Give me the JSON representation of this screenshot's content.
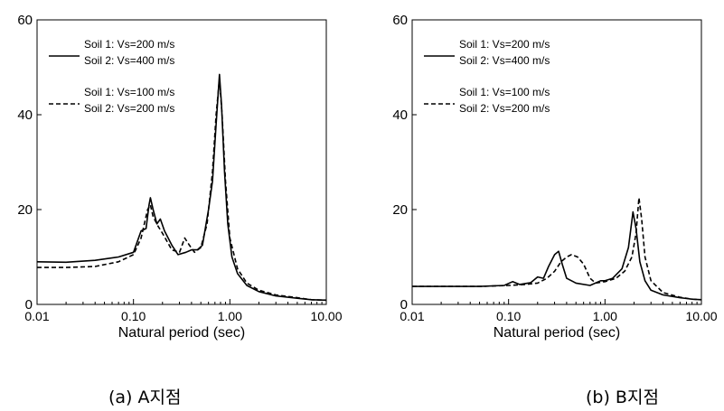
{
  "chart_data": [
    {
      "type": "line",
      "xscale": "log",
      "xlim": [
        0.01,
        10
      ],
      "ylim": [
        0,
        60
      ],
      "xlabel": "Natural period (sec)",
      "ylabel": "",
      "xticks": [
        "0.01",
        "0.10",
        "1.00",
        "10.00"
      ],
      "yticks": [
        "0",
        "20",
        "40",
        "60"
      ],
      "grid": false,
      "legend_position": "top-left",
      "caption": "(a) A지점",
      "series": [
        {
          "name": "Soil 1: Vs=200 m/s",
          "name_line2": "Soil 2: Vs=400 m/s",
          "style": "solid",
          "points": [
            [
              0.01,
              9.0
            ],
            [
              0.02,
              8.9
            ],
            [
              0.04,
              9.3
            ],
            [
              0.07,
              10.0
            ],
            [
              0.1,
              11.0
            ],
            [
              0.12,
              15.5
            ],
            [
              0.135,
              16.0
            ],
            [
              0.145,
              21.0
            ],
            [
              0.15,
              22.5
            ],
            [
              0.16,
              20.0
            ],
            [
              0.175,
              17.0
            ],
            [
              0.19,
              18.0
            ],
            [
              0.21,
              15.5
            ],
            [
              0.25,
              12.5
            ],
            [
              0.29,
              10.5
            ],
            [
              0.35,
              11.0
            ],
            [
              0.4,
              11.5
            ],
            [
              0.46,
              11.5
            ],
            [
              0.52,
              12.5
            ],
            [
              0.6,
              20.0
            ],
            [
              0.66,
              26.0
            ],
            [
              0.72,
              38.0
            ],
            [
              0.78,
              48.5
            ],
            [
              0.82,
              42.0
            ],
            [
              0.88,
              28.0
            ],
            [
              0.95,
              17.0
            ],
            [
              1.05,
              10.0
            ],
            [
              1.2,
              6.5
            ],
            [
              1.5,
              4.0
            ],
            [
              2.0,
              2.7
            ],
            [
              3.0,
              1.8
            ],
            [
              5.0,
              1.3
            ],
            [
              7.0,
              1.0
            ],
            [
              10.0,
              0.9
            ]
          ]
        },
        {
          "name": "Soil 1: Vs=100 m/s",
          "name_line2": "Soil 2: Vs=200 m/s",
          "style": "dashed",
          "points": [
            [
              0.01,
              7.8
            ],
            [
              0.02,
              7.8
            ],
            [
              0.04,
              8.0
            ],
            [
              0.07,
              9.0
            ],
            [
              0.1,
              10.5
            ],
            [
              0.12,
              14.0
            ],
            [
              0.14,
              20.0
            ],
            [
              0.15,
              21.0
            ],
            [
              0.16,
              18.5
            ],
            [
              0.18,
              16.5
            ],
            [
              0.2,
              15.0
            ],
            [
              0.25,
              11.5
            ],
            [
              0.3,
              11.0
            ],
            [
              0.34,
              14.0
            ],
            [
              0.38,
              12.5
            ],
            [
              0.43,
              11.0
            ],
            [
              0.5,
              12.0
            ],
            [
              0.58,
              17.0
            ],
            [
              0.66,
              28.0
            ],
            [
              0.72,
              40.0
            ],
            [
              0.78,
              47.5
            ],
            [
              0.83,
              40.0
            ],
            [
              0.9,
              26.0
            ],
            [
              1.0,
              14.0
            ],
            [
              1.2,
              7.5
            ],
            [
              1.5,
              4.5
            ],
            [
              2.0,
              3.0
            ],
            [
              3.0,
              2.0
            ],
            [
              5.0,
              1.4
            ],
            [
              7.0,
              1.0
            ],
            [
              10.0,
              0.9
            ]
          ]
        }
      ]
    },
    {
      "type": "line",
      "xscale": "log",
      "xlim": [
        0.01,
        10
      ],
      "ylim": [
        0,
        60
      ],
      "xlabel": "Natural period (sec)",
      "ylabel": "",
      "xticks": [
        "0.01",
        "0.10",
        "1.00",
        "10.00"
      ],
      "yticks": [
        "0",
        "20",
        "40",
        "60"
      ],
      "grid": false,
      "legend_position": "top-left",
      "caption": "(b) B지점",
      "series": [
        {
          "name": "Soil 1: Vs=200 m/s",
          "name_line2": "Soil 2: Vs=400 m/s",
          "style": "solid",
          "points": [
            [
              0.01,
              3.8
            ],
            [
              0.05,
              3.8
            ],
            [
              0.09,
              4.0
            ],
            [
              0.11,
              4.8
            ],
            [
              0.13,
              4.2
            ],
            [
              0.17,
              4.6
            ],
            [
              0.2,
              5.8
            ],
            [
              0.23,
              5.5
            ],
            [
              0.26,
              8.0
            ],
            [
              0.3,
              10.5
            ],
            [
              0.33,
              11.2
            ],
            [
              0.36,
              8.5
            ],
            [
              0.4,
              5.5
            ],
            [
              0.5,
              4.5
            ],
            [
              0.7,
              4.0
            ],
            [
              0.9,
              5.0
            ],
            [
              1.0,
              5.0
            ],
            [
              1.2,
              5.5
            ],
            [
              1.5,
              7.5
            ],
            [
              1.75,
              12.0
            ],
            [
              1.95,
              19.5
            ],
            [
              2.1,
              16.0
            ],
            [
              2.3,
              9.0
            ],
            [
              2.6,
              5.0
            ],
            [
              3.0,
              3.0
            ],
            [
              4.0,
              2.0
            ],
            [
              6.0,
              1.4
            ],
            [
              8.0,
              1.1
            ],
            [
              10.0,
              1.0
            ]
          ]
        },
        {
          "name": "Soil 1: Vs=100 m/s",
          "name_line2": "Soil 2: Vs=200 m/s",
          "style": "dashed",
          "points": [
            [
              0.01,
              3.8
            ],
            [
              0.05,
              3.8
            ],
            [
              0.1,
              4.0
            ],
            [
              0.15,
              4.2
            ],
            [
              0.2,
              4.5
            ],
            [
              0.25,
              5.5
            ],
            [
              0.3,
              7.0
            ],
            [
              0.35,
              9.0
            ],
            [
              0.4,
              10.0
            ],
            [
              0.45,
              10.5
            ],
            [
              0.52,
              10.0
            ],
            [
              0.6,
              8.5
            ],
            [
              0.7,
              5.5
            ],
            [
              0.8,
              4.5
            ],
            [
              1.0,
              4.8
            ],
            [
              1.3,
              5.5
            ],
            [
              1.6,
              7.0
            ],
            [
              1.9,
              10.0
            ],
            [
              2.1,
              15.0
            ],
            [
              2.25,
              22.5
            ],
            [
              2.4,
              18.0
            ],
            [
              2.6,
              10.0
            ],
            [
              3.0,
              5.0
            ],
            [
              4.0,
              2.5
            ],
            [
              6.0,
              1.5
            ],
            [
              8.0,
              1.1
            ],
            [
              10.0,
              1.0
            ]
          ]
        }
      ]
    }
  ]
}
